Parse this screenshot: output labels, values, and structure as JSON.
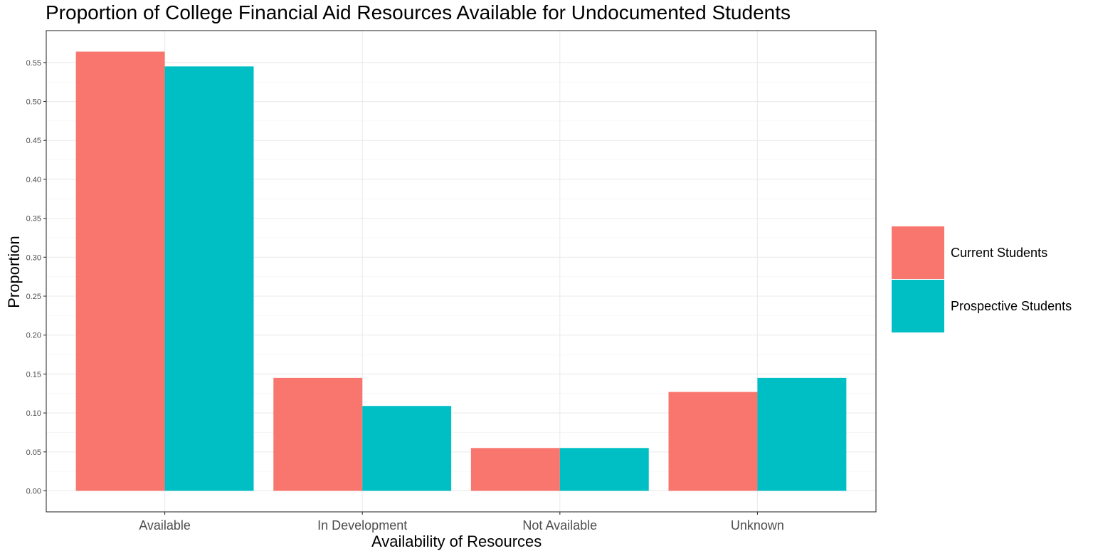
{
  "chart_data": {
    "type": "bar",
    "title": "Proportion of College Financial Aid Resources Available for Undocumented Students",
    "xlabel": "Availability of Resources",
    "ylabel": "Proportion",
    "categories": [
      "Available",
      "In Development",
      "Not Available",
      "Unknown"
    ],
    "series": [
      {
        "name": "Current Students",
        "color": "#F8766D",
        "values": [
          0.564,
          0.145,
          0.055,
          0.127
        ]
      },
      {
        "name": "Prospective Students",
        "color": "#00BFC4",
        "values": [
          0.545,
          0.109,
          0.055,
          0.145
        ]
      }
    ],
    "ylim": [
      -0.027,
      0.591
    ],
    "y_ticks": [
      "0.00",
      "0.05",
      "0.10",
      "0.15",
      "0.20",
      "0.25",
      "0.30",
      "0.35",
      "0.40",
      "0.45",
      "0.50",
      "0.55"
    ],
    "grid": true,
    "legend_position": "right"
  }
}
